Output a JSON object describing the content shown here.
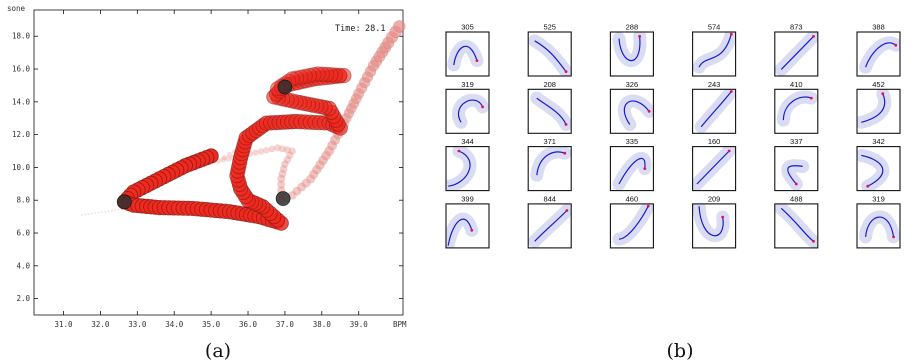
{
  "chart_data": [
    {
      "type": "scatter",
      "title": "",
      "xlabel": "BPM",
      "ylabel": "sone",
      "xlim": [
        30.2,
        40.2
      ],
      "ylim": [
        1.0,
        19.6
      ],
      "x_ticks": [
        "31.0",
        "32.0",
        "33.0",
        "34.0",
        "35.0",
        "36.0",
        "37.0",
        "38.0",
        "39.0"
      ],
      "y_ticks": [
        "2.0",
        "4.0",
        "6.0",
        "8.0",
        "10.0",
        "12.0",
        "14.0",
        "16.0",
        "18.0"
      ],
      "annotation_label": "Time:",
      "annotation_value": "28.1",
      "series": [
        {
          "role": "main",
          "points": [
            [
              35.0,
              10.7
            ],
            [
              34.3,
              10.1
            ],
            [
              33.6,
              9.3
            ],
            [
              32.9,
              8.5
            ],
            [
              32.65,
              7.9
            ],
            [
              32.9,
              7.7
            ],
            [
              33.6,
              7.55
            ],
            [
              34.5,
              7.5
            ],
            [
              35.5,
              7.3
            ],
            [
              36.3,
              7.0
            ],
            [
              36.9,
              6.6
            ],
            [
              36.7,
              7.0
            ],
            [
              36.4,
              7.6
            ],
            [
              36.0,
              8.0
            ],
            [
              35.8,
              8.7
            ],
            [
              35.7,
              9.5
            ],
            [
              35.8,
              10.6
            ],
            [
              35.95,
              11.8
            ],
            [
              36.5,
              12.7
            ],
            [
              37.3,
              12.8
            ],
            [
              38.2,
              12.7
            ],
            [
              38.5,
              12.4
            ],
            [
              38.2,
              13.6
            ],
            [
              37.3,
              14.0
            ],
            [
              36.7,
              14.3
            ],
            [
              37.0,
              15.0
            ],
            [
              37.8,
              15.4
            ],
            [
              38.6,
              15.6
            ],
            [
              37.9,
              15.7
            ],
            [
              37.2,
              15.4
            ],
            [
              36.8,
              14.8
            ]
          ]
        },
        {
          "role": "trail",
          "points": [
            [
              36.3,
              12.0
            ],
            [
              35.9,
              11.3
            ],
            [
              35.5,
              10.8
            ],
            [
              35.2,
              10.4
            ],
            [
              35.6,
              10.6
            ],
            [
              36.2,
              10.9
            ],
            [
              36.8,
              11.2
            ],
            [
              37.2,
              11.0
            ],
            [
              37.0,
              10.2
            ],
            [
              36.9,
              9.3
            ],
            [
              36.9,
              8.6
            ],
            [
              36.9,
              8.0
            ],
            [
              37.2,
              8.3
            ],
            [
              37.7,
              9.3
            ],
            [
              38.2,
              11.0
            ],
            [
              38.6,
              12.7
            ],
            [
              39.0,
              14.5
            ],
            [
              39.4,
              16.2
            ],
            [
              39.8,
              17.6
            ],
            [
              40.1,
              18.6
            ]
          ]
        },
        {
          "role": "dark",
          "points": [
            [
              32.65,
              7.9
            ],
            [
              37.0,
              14.9
            ],
            [
              36.95,
              8.1
            ]
          ]
        }
      ]
    },
    {
      "type": "scatter",
      "title": "",
      "note": "grid of small trajectory thumbnails",
      "panels": [
        {
          "label": "305",
          "curve": [
            [
              0.18,
              0.75
            ],
            [
              0.25,
              0.3
            ],
            [
              0.55,
              0.12
            ],
            [
              0.72,
              0.65
            ]
          ]
        },
        {
          "label": "525",
          "curve": [
            [
              0.15,
              0.2
            ],
            [
              0.5,
              0.4
            ],
            [
              0.65,
              0.6
            ],
            [
              0.88,
              0.9
            ]
          ]
        },
        {
          "label": "288",
          "curve": [
            [
              0.2,
              0.15
            ],
            [
              0.25,
              0.8
            ],
            [
              0.75,
              0.85
            ],
            [
              0.68,
              0.1
            ]
          ]
        },
        {
          "label": "574",
          "curve": [
            [
              0.15,
              0.8
            ],
            [
              0.3,
              0.5
            ],
            [
              0.7,
              0.75
            ],
            [
              0.9,
              0.05
            ]
          ]
        },
        {
          "label": "873",
          "curve": [
            [
              0.15,
              0.85
            ],
            [
              0.4,
              0.6
            ],
            [
              0.65,
              0.35
            ],
            [
              0.9,
              0.1
            ]
          ]
        },
        {
          "label": "388",
          "curve": [
            [
              0.2,
              0.8
            ],
            [
              0.3,
              0.5
            ],
            [
              0.65,
              0.1
            ],
            [
              0.9,
              0.3
            ]
          ]
        },
        {
          "label": "319",
          "curve": [
            [
              0.35,
              0.75
            ],
            [
              0.1,
              0.35
            ],
            [
              0.7,
              0.05
            ],
            [
              0.85,
              0.4
            ]
          ]
        },
        {
          "label": "208",
          "curve": [
            [
              0.2,
              0.2
            ],
            [
              0.3,
              0.3
            ],
            [
              0.75,
              0.5
            ],
            [
              0.88,
              0.8
            ]
          ]
        },
        {
          "label": "326",
          "curve": [
            [
              0.45,
              0.8
            ],
            [
              0.1,
              0.3
            ],
            [
              0.55,
              0.05
            ],
            [
              0.9,
              0.5
            ]
          ]
        },
        {
          "label": "243",
          "curve": [
            [
              0.2,
              0.85
            ],
            [
              0.5,
              0.5
            ],
            [
              0.7,
              0.3
            ],
            [
              0.9,
              0.05
            ]
          ]
        },
        {
          "label": "410",
          "curve": [
            [
              0.2,
              0.7
            ],
            [
              0.2,
              0.3
            ],
            [
              0.6,
              0.1
            ],
            [
              0.85,
              0.2
            ]
          ]
        },
        {
          "label": "452",
          "curve": [
            [
              0.1,
              0.75
            ],
            [
              0.5,
              0.65
            ],
            [
              0.75,
              0.45
            ],
            [
              0.6,
              0.1
            ]
          ]
        },
        {
          "label": "344",
          "curve": [
            [
              0.05,
              0.9
            ],
            [
              0.5,
              0.85
            ],
            [
              0.8,
              0.3
            ],
            [
              0.3,
              0.1
            ]
          ]
        },
        {
          "label": "371",
          "curve": [
            [
              0.2,
              0.65
            ],
            [
              0.25,
              0.2
            ],
            [
              0.6,
              0.05
            ],
            [
              0.85,
              0.15
            ]
          ]
        },
        {
          "label": "335",
          "curve": [
            [
              0.2,
              0.85
            ],
            [
              0.5,
              0.3
            ],
            [
              0.85,
              0.05
            ],
            [
              0.8,
              0.5
            ]
          ]
        },
        {
          "label": "160",
          "curve": [
            [
              0.1,
              0.85
            ],
            [
              0.45,
              0.5
            ],
            [
              0.75,
              0.2
            ],
            [
              0.85,
              0.1
            ]
          ]
        },
        {
          "label": "337",
          "curve": [
            [
              0.65,
              0.45
            ],
            [
              0.3,
              0.4
            ],
            [
              0.15,
              0.45
            ],
            [
              0.5,
              0.85
            ]
          ]
        },
        {
          "label": "342",
          "curve": [
            [
              0.1,
              0.2
            ],
            [
              0.6,
              0.3
            ],
            [
              0.85,
              0.6
            ],
            [
              0.25,
              0.9
            ]
          ]
        },
        {
          "label": "399",
          "curve": [
            [
              0.05,
              0.95
            ],
            [
              0.15,
              0.4
            ],
            [
              0.45,
              0.1
            ],
            [
              0.6,
              0.6
            ]
          ]
        },
        {
          "label": "844",
          "curve": [
            [
              0.15,
              0.85
            ],
            [
              0.4,
              0.6
            ],
            [
              0.7,
              0.35
            ],
            [
              0.9,
              0.15
            ]
          ]
        },
        {
          "label": "460",
          "curve": [
            [
              0.2,
              0.8
            ],
            [
              0.4,
              0.8
            ],
            [
              0.7,
              0.4
            ],
            [
              0.88,
              0.05
            ]
          ]
        },
        {
          "label": "209",
          "curve": [
            [
              0.15,
              0.05
            ],
            [
              0.2,
              0.9
            ],
            [
              0.8,
              0.9
            ],
            [
              0.7,
              0.3
            ]
          ]
        },
        {
          "label": "488",
          "curve": [
            [
              0.15,
              0.1
            ],
            [
              0.55,
              0.45
            ],
            [
              0.7,
              0.7
            ],
            [
              0.9,
              0.85
            ]
          ]
        },
        {
          "label": "319",
          "curve": [
            [
              0.2,
              0.75
            ],
            [
              0.25,
              0.2
            ],
            [
              0.75,
              0.1
            ],
            [
              0.85,
              0.75
            ]
          ]
        }
      ]
    }
  ],
  "captions": {
    "a": "(a)",
    "b": "(b)"
  },
  "colors": {
    "main": "#ee2a20",
    "mainStroke": "#7a1510",
    "trail": "#e58c86",
    "dark": "#2f2f2f",
    "curve": "#1a1ad0",
    "halo": "#d9dcf3",
    "endpoint": "#e0105a"
  }
}
